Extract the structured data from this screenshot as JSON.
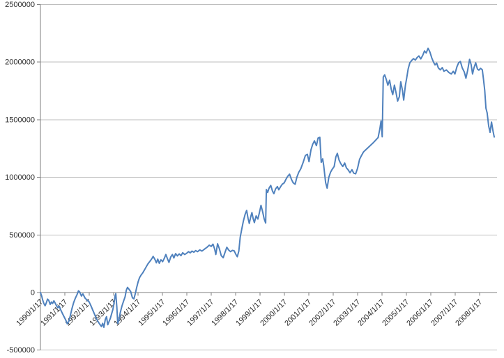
{
  "chart_data": {
    "type": "line",
    "title": "",
    "legend_position": "none",
    "grid": "horizontal",
    "colors": {
      "series_line": "#4F81BD",
      "gridline": "#BEBEBE",
      "axis_line": "#7F7F7F",
      "label_text": "#2b2b2b",
      "background": "#ffffff"
    },
    "y_axis": {
      "min": -500000,
      "max": 2500000,
      "step": 500000,
      "tick_labels": [
        "2500000",
        "2000000",
        "1500000",
        "1000000",
        "500000",
        "0",
        "-500000"
      ]
    },
    "x_axis": {
      "tick_labels": [
        "1990/1/17",
        "1991/1/17",
        "1992/1/17",
        "1993/1/17",
        "1994/1/17",
        "1995/1/17",
        "1996/1/17",
        "1997/1/17",
        "1998/1/17",
        "1999/1/17",
        "2000/1/17",
        "2001/1/17",
        "2002/1/17",
        "2003/1/17",
        "2004/1/17",
        "2005/1/17",
        "2006/1/17",
        "2007/1/17",
        "2008/1/17"
      ],
      "label_rotation_deg": -45
    },
    "series": [
      {
        "x_unit": "years_since_first_tick",
        "points": [
          [
            0.0,
            0
          ],
          [
            0.05,
            -30000
          ],
          [
            0.09,
            -62000
          ],
          [
            0.14,
            -95000
          ],
          [
            0.19,
            -115000
          ],
          [
            0.24,
            -90000
          ],
          [
            0.29,
            -57000
          ],
          [
            0.34,
            -68000
          ],
          [
            0.4,
            -103000
          ],
          [
            0.45,
            -82000
          ],
          [
            0.5,
            -95000
          ],
          [
            0.55,
            -72000
          ],
          [
            0.6,
            -90000
          ],
          [
            0.66,
            -115000
          ],
          [
            0.71,
            -133000
          ],
          [
            0.77,
            -118000
          ],
          [
            0.84,
            -155000
          ],
          [
            0.91,
            -185000
          ],
          [
            0.98,
            -215000
          ],
          [
            1.04,
            -240000
          ],
          [
            1.1,
            -272000
          ],
          [
            1.16,
            -252000
          ],
          [
            1.22,
            -205000
          ],
          [
            1.29,
            -140000
          ],
          [
            1.36,
            -88000
          ],
          [
            1.43,
            -50000
          ],
          [
            1.5,
            -18000
          ],
          [
            1.56,
            15000
          ],
          [
            1.61,
            5000
          ],
          [
            1.68,
            -30000
          ],
          [
            1.74,
            -12000
          ],
          [
            1.83,
            -48000
          ],
          [
            1.92,
            -68000
          ],
          [
            1.99,
            -80000
          ],
          [
            2.06,
            -110000
          ],
          [
            2.14,
            -150000
          ],
          [
            2.22,
            -190000
          ],
          [
            2.29,
            -225000
          ],
          [
            2.36,
            -252000
          ],
          [
            2.43,
            -275000
          ],
          [
            2.5,
            -295000
          ],
          [
            2.55,
            -268000
          ],
          [
            2.6,
            -302000
          ],
          [
            2.66,
            -232000
          ],
          [
            2.71,
            -210000
          ],
          [
            2.76,
            -280000
          ],
          [
            2.81,
            -252000
          ],
          [
            2.87,
            -222000
          ],
          [
            2.92,
            -183000
          ],
          [
            2.97,
            -148000
          ],
          [
            3.02,
            -88000
          ],
          [
            3.06,
            -28000
          ],
          [
            3.09,
            -10000
          ],
          [
            3.13,
            -125000
          ],
          [
            3.17,
            -268000
          ],
          [
            3.22,
            -238000
          ],
          [
            3.27,
            -178000
          ],
          [
            3.34,
            -118000
          ],
          [
            3.41,
            -72000
          ],
          [
            3.47,
            -38000
          ],
          [
            3.52,
            20000
          ],
          [
            3.57,
            45000
          ],
          [
            3.63,
            28000
          ],
          [
            3.7,
            8000
          ],
          [
            3.77,
            -45000
          ],
          [
            3.83,
            -55000
          ],
          [
            3.89,
            -8000
          ],
          [
            3.94,
            40000
          ],
          [
            4.0,
            90000
          ],
          [
            4.06,
            128000
          ],
          [
            4.12,
            150000
          ],
          [
            4.19,
            170000
          ],
          [
            4.27,
            198000
          ],
          [
            4.34,
            225000
          ],
          [
            4.41,
            250000
          ],
          [
            4.49,
            272000
          ],
          [
            4.56,
            292000
          ],
          [
            4.62,
            314000
          ],
          [
            4.69,
            288000
          ],
          [
            4.75,
            258000
          ],
          [
            4.81,
            290000
          ],
          [
            4.87,
            254000
          ],
          [
            4.94,
            284000
          ],
          [
            5.01,
            268000
          ],
          [
            5.08,
            298000
          ],
          [
            5.14,
            330000
          ],
          [
            5.21,
            292000
          ],
          [
            5.27,
            262000
          ],
          [
            5.34,
            308000
          ],
          [
            5.41,
            330000
          ],
          [
            5.47,
            300000
          ],
          [
            5.54,
            338000
          ],
          [
            5.61,
            318000
          ],
          [
            5.69,
            335000
          ],
          [
            5.76,
            320000
          ],
          [
            5.83,
            345000
          ],
          [
            5.91,
            330000
          ],
          [
            5.99,
            340000
          ],
          [
            6.07,
            355000
          ],
          [
            6.14,
            344000
          ],
          [
            6.21,
            360000
          ],
          [
            6.29,
            350000
          ],
          [
            6.36,
            364000
          ],
          [
            6.44,
            354000
          ],
          [
            6.53,
            370000
          ],
          [
            6.62,
            360000
          ],
          [
            6.72,
            376000
          ],
          [
            6.82,
            392000
          ],
          [
            6.92,
            411000
          ],
          [
            7.0,
            400000
          ],
          [
            7.07,
            420000
          ],
          [
            7.14,
            378000
          ],
          [
            7.19,
            330000
          ],
          [
            7.26,
            423000
          ],
          [
            7.33,
            382000
          ],
          [
            7.41,
            320000
          ],
          [
            7.49,
            302000
          ],
          [
            7.57,
            350000
          ],
          [
            7.64,
            393000
          ],
          [
            7.71,
            370000
          ],
          [
            7.79,
            355000
          ],
          [
            7.87,
            366000
          ],
          [
            7.94,
            362000
          ],
          [
            8.01,
            332000
          ],
          [
            8.07,
            311000
          ],
          [
            8.13,
            360000
          ],
          [
            8.19,
            480000
          ],
          [
            8.26,
            560000
          ],
          [
            8.32,
            622000
          ],
          [
            8.39,
            680000
          ],
          [
            8.45,
            713000
          ],
          [
            8.51,
            645000
          ],
          [
            8.56,
            600000
          ],
          [
            8.62,
            658000
          ],
          [
            8.67,
            694000
          ],
          [
            8.72,
            640000
          ],
          [
            8.77,
            607000
          ],
          [
            8.84,
            665000
          ],
          [
            8.91,
            638000
          ],
          [
            8.97,
            690000
          ],
          [
            9.04,
            757000
          ],
          [
            9.11,
            700000
          ],
          [
            9.17,
            640000
          ],
          [
            9.23,
            604000
          ],
          [
            9.26,
            894000
          ],
          [
            9.31,
            868000
          ],
          [
            9.37,
            905000
          ],
          [
            9.44,
            930000
          ],
          [
            9.51,
            882000
          ],
          [
            9.57,
            858000
          ],
          [
            9.64,
            900000
          ],
          [
            9.71,
            920000
          ],
          [
            9.77,
            892000
          ],
          [
            9.84,
            918000
          ],
          [
            9.91,
            940000
          ],
          [
            9.99,
            952000
          ],
          [
            10.07,
            985000
          ],
          [
            10.14,
            1010000
          ],
          [
            10.21,
            1027000
          ],
          [
            10.29,
            982000
          ],
          [
            10.36,
            952000
          ],
          [
            10.44,
            940000
          ],
          [
            10.51,
            1000000
          ],
          [
            10.59,
            1045000
          ],
          [
            10.67,
            1073000
          ],
          [
            10.77,
            1130000
          ],
          [
            10.86,
            1190000
          ],
          [
            10.94,
            1200000
          ],
          [
            11.01,
            1136000
          ],
          [
            11.09,
            1239000
          ],
          [
            11.16,
            1287000
          ],
          [
            11.23,
            1317000
          ],
          [
            11.31,
            1275000
          ],
          [
            11.38,
            1341000
          ],
          [
            11.45,
            1347000
          ],
          [
            11.51,
            1130000
          ],
          [
            11.57,
            1160000
          ],
          [
            11.61,
            1106000
          ],
          [
            11.69,
            955000
          ],
          [
            11.75,
            906000
          ],
          [
            11.82,
            1000000
          ],
          [
            11.89,
            1045000
          ],
          [
            11.96,
            1070000
          ],
          [
            12.04,
            1094000
          ],
          [
            12.11,
            1178000
          ],
          [
            12.17,
            1208000
          ],
          [
            12.24,
            1150000
          ],
          [
            12.31,
            1118000
          ],
          [
            12.39,
            1094000
          ],
          [
            12.47,
            1124000
          ],
          [
            12.54,
            1082000
          ],
          [
            12.61,
            1066000
          ],
          [
            12.69,
            1040000
          ],
          [
            12.77,
            1066000
          ],
          [
            12.84,
            1036000
          ],
          [
            12.92,
            1030000
          ],
          [
            13.0,
            1080000
          ],
          [
            13.08,
            1156000
          ],
          [
            13.16,
            1190000
          ],
          [
            13.24,
            1220000
          ],
          [
            13.34,
            1240000
          ],
          [
            13.44,
            1260000
          ],
          [
            13.54,
            1280000
          ],
          [
            13.64,
            1300000
          ],
          [
            13.74,
            1322000
          ],
          [
            13.84,
            1345000
          ],
          [
            13.91,
            1420000
          ],
          [
            13.96,
            1490000
          ],
          [
            14.01,
            1352000
          ],
          [
            14.05,
            1870000
          ],
          [
            14.11,
            1890000
          ],
          [
            14.17,
            1852000
          ],
          [
            14.24,
            1800000
          ],
          [
            14.31,
            1842000
          ],
          [
            14.38,
            1762000
          ],
          [
            14.44,
            1718000
          ],
          [
            14.51,
            1800000
          ],
          [
            14.57,
            1738000
          ],
          [
            14.64,
            1662000
          ],
          [
            14.71,
            1700000
          ],
          [
            14.77,
            1831000
          ],
          [
            14.84,
            1752000
          ],
          [
            14.89,
            1670000
          ],
          [
            14.96,
            1800000
          ],
          [
            15.01,
            1861000
          ],
          [
            15.07,
            1940000
          ],
          [
            15.14,
            1994000
          ],
          [
            15.21,
            2013000
          ],
          [
            15.29,
            2030000
          ],
          [
            15.37,
            2018000
          ],
          [
            15.44,
            2040000
          ],
          [
            15.51,
            2054000
          ],
          [
            15.59,
            2028000
          ],
          [
            15.67,
            2060000
          ],
          [
            15.74,
            2097000
          ],
          [
            15.81,
            2080000
          ],
          [
            15.89,
            2120000
          ],
          [
            15.96,
            2090000
          ],
          [
            16.04,
            2036000
          ],
          [
            16.11,
            2000000
          ],
          [
            16.17,
            1976000
          ],
          [
            16.24,
            1992000
          ],
          [
            16.31,
            1950000
          ],
          [
            16.39,
            1933000
          ],
          [
            16.47,
            1952000
          ],
          [
            16.54,
            1921000
          ],
          [
            16.64,
            1932000
          ],
          [
            16.74,
            1910000
          ],
          [
            16.84,
            1897000
          ],
          [
            16.92,
            1920000
          ],
          [
            16.99,
            1897000
          ],
          [
            17.07,
            1960000
          ],
          [
            17.14,
            1994000
          ],
          [
            17.21,
            2006000
          ],
          [
            17.29,
            1950000
          ],
          [
            17.37,
            1915000
          ],
          [
            17.44,
            1861000
          ],
          [
            17.51,
            1930000
          ],
          [
            17.59,
            2024000
          ],
          [
            17.65,
            1980000
          ],
          [
            17.71,
            1897000
          ],
          [
            17.77,
            1950000
          ],
          [
            17.84,
            1994000
          ],
          [
            17.91,
            1940000
          ],
          [
            17.97,
            1930000
          ],
          [
            18.04,
            1946000
          ],
          [
            18.11,
            1933000
          ],
          [
            18.16,
            1850000
          ],
          [
            18.21,
            1752000
          ],
          [
            18.26,
            1600000
          ],
          [
            18.31,
            1560000
          ],
          [
            18.37,
            1446000
          ],
          [
            18.43,
            1390000
          ],
          [
            18.49,
            1480000
          ],
          [
            18.55,
            1400000
          ],
          [
            18.6,
            1350000
          ]
        ]
      }
    ]
  }
}
